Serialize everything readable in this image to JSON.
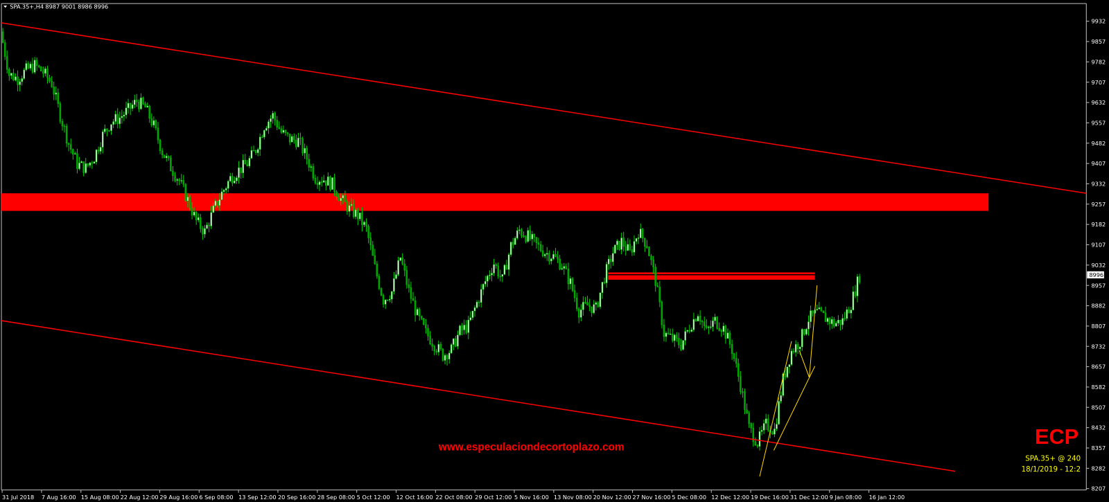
{
  "header": {
    "symbol": "SPA.35+,H4",
    "ohlc": "8987 9001 8986 8996"
  },
  "watermark": {
    "url": "www.especulaciondecortoplazo.com",
    "logo": "ECP",
    "info": "SPA.35+ @ 240",
    "datetime": "18/1/2019 - 12:2"
  },
  "colors": {
    "background": "#000000",
    "bull_body": "#c8ffc8",
    "bear_body": "#00a000",
    "wick": "#00d000",
    "channel": "#ff0000",
    "zone": "#ff0000",
    "trendline": "#ffd700",
    "info_text": "#ffff00"
  },
  "chart_data": {
    "type": "candlestick",
    "title": "SPA.35+,H4",
    "ylim": [
      8207,
      9970
    ],
    "yticks": [
      "9932",
      "9857",
      "9782",
      "9707",
      "9632",
      "9557",
      "9482",
      "9407",
      "9332",
      "9257",
      "9182",
      "9107",
      "9032",
      "8957",
      "8882",
      "8807",
      "8732",
      "8657",
      "8582",
      "8507",
      "8432",
      "8357",
      "8282",
      "8207"
    ],
    "xticks": [
      "31 Jul 2018",
      "7 Aug 16:00",
      "15 Aug 08:00",
      "22 Aug 12:00",
      "29 Aug 16:00",
      "6 Sep 08:00",
      "13 Sep 12:00",
      "20 Sep 16:00",
      "28 Sep 08:00",
      "5 Oct 12:00",
      "12 Oct 16:00",
      "22 Oct 08:00",
      "29 Oct 12:00",
      "5 Nov 16:00",
      "13 Nov 08:00",
      "20 Nov 12:00",
      "27 Nov 16:00",
      "5 Dec 08:00",
      "12 Dec 12:00",
      "19 Dec 16:00",
      "31 Dec 12:00",
      "9 Jan 08:00",
      "16 Jan 12:00"
    ],
    "last_price": "8996",
    "closes": [
      9893,
      9736,
      9720,
      9752,
      9769,
      9744,
      9703,
      9586,
      9480,
      9405,
      9390,
      9431,
      9512,
      9561,
      9576,
      9605,
      9637,
      9613,
      9545,
      9451,
      9393,
      9343,
      9272,
      9194,
      9155,
      9233,
      9297,
      9352,
      9383,
      9407,
      9459,
      9547,
      9584,
      9522,
      9497,
      9491,
      9427,
      9355,
      9349,
      9330,
      9276,
      9239,
      9215,
      9165,
      9022,
      8904,
      8934,
      9060,
      8936,
      8845,
      8782,
      8740,
      8699,
      8720,
      8787,
      8808,
      8892,
      8972,
      9039,
      8976,
      9104,
      9160,
      9137,
      9106,
      9079,
      9064,
      9032,
      8966,
      8863,
      8884,
      8870,
      8989,
      9079,
      9119,
      9077,
      9157,
      9109,
      8976,
      8780,
      8759,
      8739,
      8803,
      8859,
      8785,
      8827,
      8799,
      8721,
      8589,
      8432,
      8377,
      8443,
      8422,
      8610,
      8714,
      8751,
      8834,
      8856,
      8837,
      8816,
      8826,
      8890,
      8994
    ],
    "resistance_zone": [
      9232,
      9297
    ],
    "resistance_zone_2": [
      8978,
      9005
    ],
    "channel_upper": [
      9926,
      9297
    ],
    "channel_lower": [
      8827,
      8271
    ]
  }
}
